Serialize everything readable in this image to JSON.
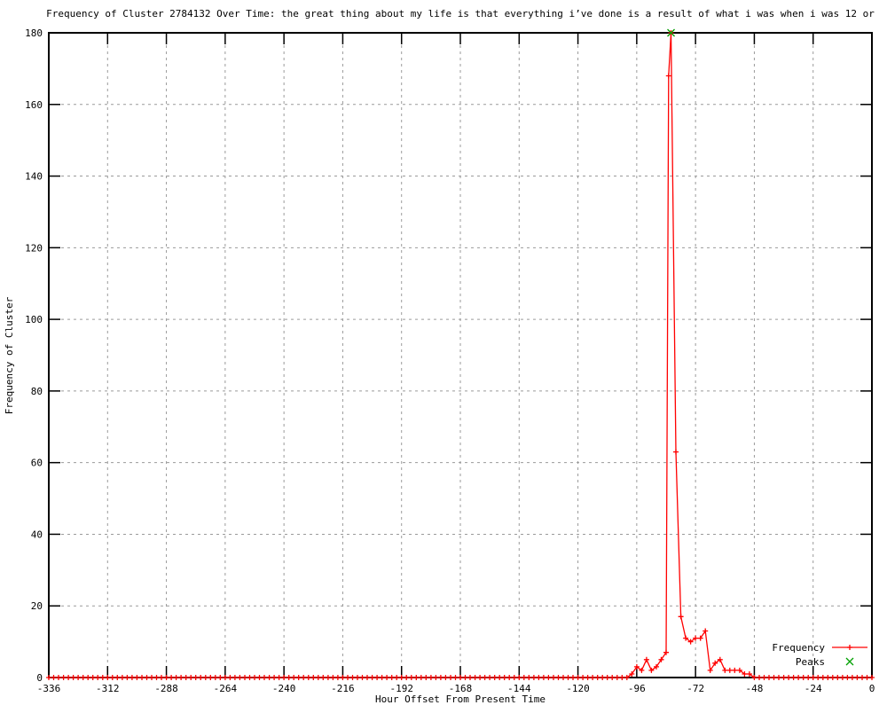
{
  "title": "Frequency of Cluster 2784132 Over Time: the great thing about my life is that everything i’ve done is a result of what i was when i was 12 or",
  "axes": {
    "x": {
      "title": "Hour Offset From Present Time"
    },
    "y": {
      "title": "Frequency of Cluster"
    }
  },
  "legend": [
    {
      "label": "Frequency",
      "color": "#ff0000",
      "marker": "plus"
    },
    {
      "label": "Peaks",
      "color": "#00a000",
      "marker": "cross"
    }
  ],
  "colors": {
    "frequency_line": "#ff0000",
    "peaks_marker": "#00a000",
    "grid": "#9a9a9a",
    "border": "#000000"
  },
  "chart_data": {
    "type": "line",
    "title": "Frequency of Cluster 2784132 Over Time: the great thing about my life is that everything i’ve done is a result of what i was when i was 12 or",
    "xlabel": "Hour Offset From Present Time",
    "ylabel": "Frequency of Cluster",
    "xlim": [
      -336,
      0
    ],
    "ylim": [
      0,
      180
    ],
    "xticks": [
      -336,
      -312,
      -288,
      -264,
      -240,
      -216,
      -192,
      -168,
      -144,
      -120,
      -96,
      -72,
      -48,
      -24,
      0
    ],
    "yticks": [
      0,
      20,
      40,
      60,
      80,
      100,
      120,
      140,
      160,
      180
    ],
    "grid": true,
    "legend_position": "bottom-right",
    "series": [
      {
        "name": "Frequency",
        "color": "#ff0000",
        "marker": "plus",
        "x": [
          -336,
          -334,
          -332,
          -330,
          -328,
          -326,
          -324,
          -322,
          -320,
          -318,
          -316,
          -314,
          -312,
          -310,
          -308,
          -306,
          -304,
          -302,
          -300,
          -298,
          -296,
          -294,
          -292,
          -290,
          -288,
          -286,
          -284,
          -282,
          -280,
          -278,
          -276,
          -274,
          -272,
          -270,
          -268,
          -266,
          -264,
          -262,
          -260,
          -258,
          -256,
          -254,
          -252,
          -250,
          -248,
          -246,
          -244,
          -242,
          -240,
          -238,
          -236,
          -234,
          -232,
          -230,
          -228,
          -226,
          -224,
          -222,
          -220,
          -218,
          -216,
          -214,
          -212,
          -210,
          -208,
          -206,
          -204,
          -202,
          -200,
          -198,
          -196,
          -194,
          -192,
          -190,
          -188,
          -186,
          -184,
          -182,
          -180,
          -178,
          -176,
          -174,
          -172,
          -170,
          -168,
          -166,
          -164,
          -162,
          -160,
          -158,
          -156,
          -154,
          -152,
          -150,
          -148,
          -146,
          -144,
          -142,
          -140,
          -138,
          -136,
          -134,
          -132,
          -130,
          -128,
          -126,
          -124,
          -122,
          -120,
          -118,
          -116,
          -114,
          -112,
          -110,
          -108,
          -106,
          -104,
          -102,
          -100,
          -98,
          -96,
          -94,
          -92,
          -90,
          -88,
          -86,
          -84,
          -83,
          -82,
          -80,
          -78,
          -76,
          -74,
          -72,
          -70,
          -68,
          -66,
          -64,
          -62,
          -60,
          -58,
          -56,
          -54,
          -52,
          -50,
          -48,
          -46,
          -44,
          -42,
          -40,
          -38,
          -36,
          -34,
          -32,
          -30,
          -28,
          -26,
          -24,
          -22,
          -20,
          -18,
          -16,
          -14,
          -12,
          -10,
          -8,
          -6,
          -4,
          -2,
          0
        ],
        "y": [
          0,
          0,
          0,
          0,
          0,
          0,
          0,
          0,
          0,
          0,
          0,
          0,
          0,
          0,
          0,
          0,
          0,
          0,
          0,
          0,
          0,
          0,
          0,
          0,
          0,
          0,
          0,
          0,
          0,
          0,
          0,
          0,
          0,
          0,
          0,
          0,
          0,
          0,
          0,
          0,
          0,
          0,
          0,
          0,
          0,
          0,
          0,
          0,
          0,
          0,
          0,
          0,
          0,
          0,
          0,
          0,
          0,
          0,
          0,
          0,
          0,
          0,
          0,
          0,
          0,
          0,
          0,
          0,
          0,
          0,
          0,
          0,
          0,
          0,
          0,
          0,
          0,
          0,
          0,
          0,
          0,
          0,
          0,
          0,
          0,
          0,
          0,
          0,
          0,
          0,
          0,
          0,
          0,
          0,
          0,
          0,
          0,
          0,
          0,
          0,
          0,
          0,
          0,
          0,
          0,
          0,
          0,
          0,
          0,
          0,
          0,
          0,
          0,
          0,
          0,
          0,
          0,
          0,
          0,
          1,
          3,
          2,
          5,
          2,
          3,
          5,
          7,
          168,
          180,
          63,
          17,
          11,
          10,
          11,
          11,
          13,
          2,
          4,
          5,
          2,
          2,
          2,
          2,
          1,
          1,
          0,
          0,
          0,
          0,
          0,
          0,
          0,
          0,
          0,
          0,
          0,
          0,
          0,
          0,
          0,
          0,
          0,
          0,
          0,
          0,
          0,
          0,
          0,
          0,
          0
        ]
      },
      {
        "name": "Peaks",
        "color": "#00a000",
        "marker": "cross",
        "x": [
          -82
        ],
        "y": [
          180
        ]
      }
    ]
  }
}
